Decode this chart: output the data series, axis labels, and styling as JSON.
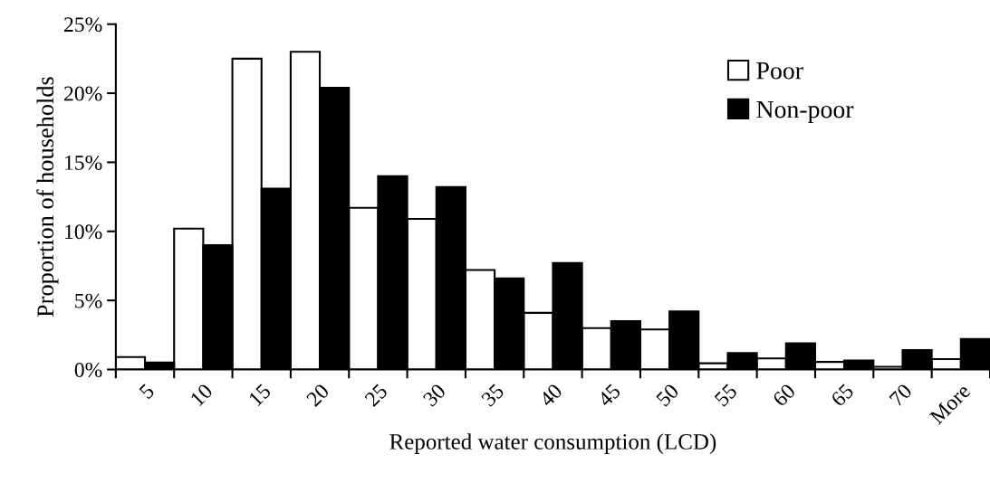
{
  "chart_data": {
    "type": "bar",
    "xlabel": "Reported water consumption (LCD)",
    "ylabel": "Proportion of households",
    "categories": [
      "5",
      "10",
      "15",
      "20",
      "25",
      "30",
      "35",
      "40",
      "45",
      "50",
      "55",
      "60",
      "65",
      "70",
      "More"
    ],
    "series": [
      {
        "name": "Poor",
        "color": "#ffffff",
        "values": [
          0.9,
          10.2,
          22.5,
          23.0,
          11.7,
          10.9,
          7.2,
          4.1,
          3.0,
          2.9,
          0.45,
          0.8,
          0.55,
          0.2,
          0.75
        ]
      },
      {
        "name": "Non-poor",
        "color": "#000000",
        "values": [
          0.5,
          9.0,
          13.1,
          20.4,
          14.0,
          13.2,
          6.6,
          7.7,
          3.5,
          4.2,
          1.2,
          1.9,
          0.65,
          1.4,
          2.2
        ]
      }
    ],
    "ylim": [
      0,
      25
    ],
    "yticks": [
      {
        "value": 0,
        "label": "0%"
      },
      {
        "value": 5,
        "label": "5%"
      },
      {
        "value": 10,
        "label": "10%"
      },
      {
        "value": 15,
        "label": "15%"
      },
      {
        "value": 20,
        "label": "20%"
      },
      {
        "value": 25,
        "label": "25%"
      }
    ],
    "grid": false,
    "legend": "top right"
  }
}
